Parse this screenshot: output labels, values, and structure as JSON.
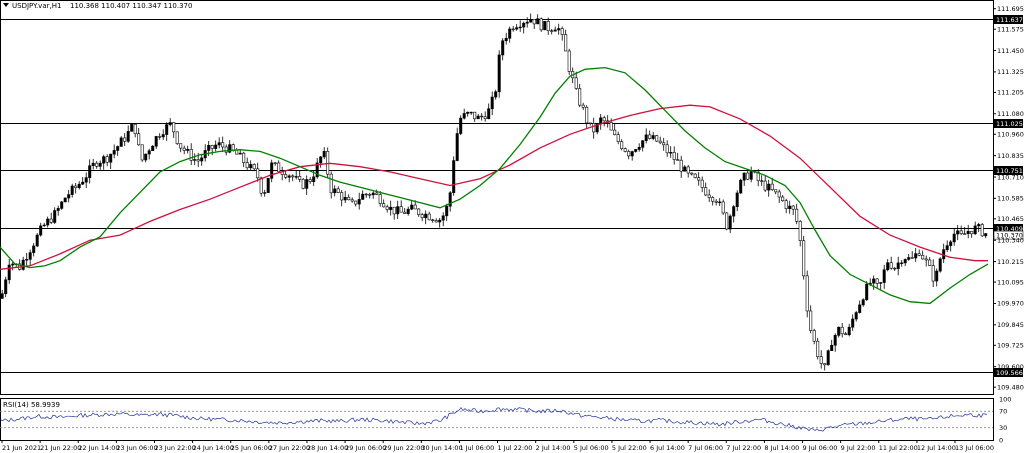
{
  "header": {
    "symbol": "USDJPY.var,H1",
    "ohlc": "110.368 110.407 110.347 110.370"
  },
  "chart_data": {
    "type": "candlestick",
    "symbol": "USDJPY.var",
    "timeframe": "H1",
    "ohlc_last": {
      "open": 110.368,
      "high": 110.407,
      "low": 110.347,
      "close": 110.37
    },
    "grid": false,
    "y_axis": {
      "range": [
        109.44,
        111.74
      ],
      "ticks": [
        "111.695",
        "111.575",
        "111.450",
        "111.325",
        "111.205",
        "111.080",
        "110.960",
        "110.835",
        "110.710",
        "110.585",
        "110.465",
        "110.340",
        "110.215",
        "110.095",
        "109.970",
        "109.845",
        "109.725",
        "109.600",
        "109.480"
      ]
    },
    "x_axis": {
      "ticks": [
        "21 Jun 2021",
        "21 Jun 22:00",
        "22 Jun 14:00",
        "23 Jun 06:00",
        "23 Jun 22:00",
        "24 Jun 14:00",
        "25 Jun 06:00",
        "27 Jun 22:00",
        "28 Jun 14:00",
        "29 Jun 06:00",
        "29 Jun 22:00",
        "30 Jun 14:00",
        "1 Jul 06:00",
        "1 Jul 22:00",
        "2 Jul 14:00",
        "5 Jul 06:00",
        "5 Jul 22:00",
        "6 Jul 14:00",
        "7 Jul 06:00",
        "7 Jul 22:00",
        "8 Jul 14:00",
        "9 Jul 06:00",
        "9 Jul 22:00",
        "11 Jul 22:00",
        "12 Jul 14:00",
        "13 Jul 06:00"
      ]
    },
    "levels": [
      {
        "value": 111.637,
        "label": "111.637"
      },
      {
        "value": 111.025,
        "label": "111.025"
      },
      {
        "value": 110.751,
        "label": "110.751"
      },
      {
        "value": 110.409,
        "label": "110.409"
      },
      {
        "value": 109.566,
        "label": "109.566"
      }
    ],
    "current_price": {
      "value": 110.37,
      "label": "110.370"
    },
    "close_path": [
      [
        0,
        110.0
      ],
      [
        8,
        110.22
      ],
      [
        18,
        110.18
      ],
      [
        30,
        110.3
      ],
      [
        42,
        110.42
      ],
      [
        55,
        110.5
      ],
      [
        65,
        110.6
      ],
      [
        75,
        110.65
      ],
      [
        85,
        110.72
      ],
      [
        95,
        110.8
      ],
      [
        105,
        110.82
      ],
      [
        115,
        110.88
      ],
      [
        125,
        110.95
      ],
      [
        133,
        111.02
      ],
      [
        140,
        110.8
      ],
      [
        150,
        110.9
      ],
      [
        160,
        110.98
      ],
      [
        170,
        111.02
      ],
      [
        178,
        110.9
      ],
      [
        186,
        110.85
      ],
      [
        196,
        110.8
      ],
      [
        206,
        110.86
      ],
      [
        216,
        110.9
      ],
      [
        226,
        110.88
      ],
      [
        236,
        110.84
      ],
      [
        246,
        110.78
      ],
      [
        256,
        110.72
      ],
      [
        262,
        110.6
      ],
      [
        270,
        110.78
      ],
      [
        280,
        110.75
      ],
      [
        290,
        110.72
      ],
      [
        300,
        110.66
      ],
      [
        310,
        110.7
      ],
      [
        318,
        110.8
      ],
      [
        322,
        110.86
      ],
      [
        330,
        110.64
      ],
      [
        340,
        110.6
      ],
      [
        350,
        110.54
      ],
      [
        360,
        110.6
      ],
      [
        370,
        110.62
      ],
      [
        380,
        110.58
      ],
      [
        390,
        110.52
      ],
      [
        400,
        110.5
      ],
      [
        410,
        110.52
      ],
      [
        420,
        110.5
      ],
      [
        430,
        110.48
      ],
      [
        440,
        110.46
      ],
      [
        448,
        110.56
      ],
      [
        452,
        110.8
      ],
      [
        458,
        111.05
      ],
      [
        468,
        111.08
      ],
      [
        478,
        111.05
      ],
      [
        488,
        111.1
      ],
      [
        494,
        111.2
      ],
      [
        500,
        111.5
      ],
      [
        506,
        111.55
      ],
      [
        512,
        111.6
      ],
      [
        520,
        111.62
      ],
      [
        530,
        111.64
      ],
      [
        540,
        111.6
      ],
      [
        548,
        111.58
      ],
      [
        556,
        111.6
      ],
      [
        562,
        111.5
      ],
      [
        568,
        111.35
      ],
      [
        575,
        111.2
      ],
      [
        582,
        111.1
      ],
      [
        588,
        111.0
      ],
      [
        594,
        110.98
      ],
      [
        600,
        111.05
      ],
      [
        606,
        111.02
      ],
      [
        612,
        110.95
      ],
      [
        620,
        110.9
      ],
      [
        628,
        110.85
      ],
      [
        636,
        110.9
      ],
      [
        646,
        110.94
      ],
      [
        656,
        110.92
      ],
      [
        666,
        110.86
      ],
      [
        676,
        110.8
      ],
      [
        686,
        110.72
      ],
      [
        696,
        110.68
      ],
      [
        706,
        110.62
      ],
      [
        716,
        110.58
      ],
      [
        726,
        110.42
      ],
      [
        734,
        110.6
      ],
      [
        742,
        110.7
      ],
      [
        750,
        110.74
      ],
      [
        758,
        110.68
      ],
      [
        766,
        110.65
      ],
      [
        776,
        110.6
      ],
      [
        786,
        110.54
      ],
      [
        794,
        110.5
      ],
      [
        800,
        110.3
      ],
      [
        804,
        110.05
      ],
      [
        808,
        109.85
      ],
      [
        814,
        109.72
      ],
      [
        820,
        109.62
      ],
      [
        824,
        109.58
      ],
      [
        830,
        109.75
      ],
      [
        838,
        109.82
      ],
      [
        846,
        109.78
      ],
      [
        854,
        109.92
      ],
      [
        862,
        110.02
      ],
      [
        870,
        110.1
      ],
      [
        878,
        110.05
      ],
      [
        886,
        110.22
      ],
      [
        894,
        110.18
      ],
      [
        902,
        110.25
      ],
      [
        910,
        110.22
      ],
      [
        918,
        110.28
      ],
      [
        926,
        110.2
      ],
      [
        934,
        110.1
      ],
      [
        940,
        110.26
      ],
      [
        946,
        110.33
      ],
      [
        952,
        110.38
      ],
      [
        960,
        110.36
      ],
      [
        968,
        110.4
      ],
      [
        976,
        110.41
      ],
      [
        984,
        110.38
      ],
      [
        988,
        110.37
      ]
    ],
    "series": [
      {
        "name": "",
        "color": "#d0103a",
        "values": [
          [
            0,
            110.17
          ],
          [
            30,
            110.19
          ],
          [
            60,
            110.26
          ],
          [
            90,
            110.34
          ],
          [
            120,
            110.37
          ],
          [
            150,
            110.45
          ],
          [
            180,
            110.52
          ],
          [
            210,
            110.58
          ],
          [
            240,
            110.65
          ],
          [
            270,
            110.72
          ],
          [
            300,
            110.77
          ],
          [
            330,
            110.79
          ],
          [
            360,
            110.77
          ],
          [
            390,
            110.74
          ],
          [
            420,
            110.7
          ],
          [
            450,
            110.66
          ],
          [
            480,
            110.7
          ],
          [
            510,
            110.78
          ],
          [
            540,
            110.88
          ],
          [
            570,
            110.96
          ],
          [
            600,
            111.02
          ],
          [
            630,
            111.07
          ],
          [
            660,
            111.11
          ],
          [
            690,
            111.13
          ],
          [
            710,
            111.12
          ],
          [
            740,
            111.05
          ],
          [
            770,
            110.95
          ],
          [
            800,
            110.82
          ],
          [
            830,
            110.65
          ],
          [
            860,
            110.48
          ],
          [
            890,
            110.37
          ],
          [
            920,
            110.3
          ],
          [
            950,
            110.24
          ],
          [
            975,
            110.22
          ],
          [
            988,
            110.22
          ]
        ]
      },
      {
        "name": "",
        "color": "#008000",
        "values": [
          [
            0,
            110.3
          ],
          [
            15,
            110.2
          ],
          [
            30,
            110.18
          ],
          [
            45,
            110.19
          ],
          [
            60,
            110.22
          ],
          [
            80,
            110.3
          ],
          [
            100,
            110.36
          ],
          [
            120,
            110.5
          ],
          [
            140,
            110.62
          ],
          [
            160,
            110.74
          ],
          [
            180,
            110.8
          ],
          [
            200,
            110.84
          ],
          [
            220,
            110.86
          ],
          [
            240,
            110.87
          ],
          [
            260,
            110.86
          ],
          [
            280,
            110.82
          ],
          [
            300,
            110.77
          ],
          [
            320,
            110.72
          ],
          [
            340,
            110.68
          ],
          [
            360,
            110.65
          ],
          [
            380,
            110.62
          ],
          [
            400,
            110.59
          ],
          [
            420,
            110.56
          ],
          [
            440,
            110.53
          ],
          [
            460,
            110.58
          ],
          [
            480,
            110.66
          ],
          [
            500,
            110.76
          ],
          [
            520,
            110.9
          ],
          [
            540,
            111.06
          ],
          [
            555,
            111.2
          ],
          [
            570,
            111.3
          ],
          [
            585,
            111.34
          ],
          [
            605,
            111.35
          ],
          [
            625,
            111.32
          ],
          [
            645,
            111.22
          ],
          [
            665,
            111.1
          ],
          [
            685,
            110.98
          ],
          [
            705,
            110.88
          ],
          [
            725,
            110.8
          ],
          [
            745,
            110.76
          ],
          [
            765,
            110.72
          ],
          [
            785,
            110.66
          ],
          [
            800,
            110.56
          ],
          [
            815,
            110.4
          ],
          [
            830,
            110.25
          ],
          [
            850,
            110.14
          ],
          [
            870,
            110.08
          ],
          [
            890,
            110.02
          ],
          [
            910,
            109.98
          ],
          [
            930,
            109.97
          ],
          [
            950,
            110.06
          ],
          [
            970,
            110.14
          ],
          [
            988,
            110.2
          ]
        ]
      }
    ],
    "rsi": {
      "label": "RSI(14) 58.9939",
      "period": 14,
      "value": 58.9939,
      "range": [
        0,
        100
      ],
      "ticks": [
        "100",
        "70",
        "30",
        "0"
      ],
      "levels": [
        70,
        30
      ],
      "color": "#1f2f9e",
      "values": [
        [
          0,
          46
        ],
        [
          20,
          52
        ],
        [
          40,
          58
        ],
        [
          60,
          55
        ],
        [
          80,
          60
        ],
        [
          100,
          62
        ],
        [
          120,
          64
        ],
        [
          140,
          60
        ],
        [
          160,
          63
        ],
        [
          180,
          58
        ],
        [
          200,
          52
        ],
        [
          220,
          50
        ],
        [
          240,
          48
        ],
        [
          260,
          44
        ],
        [
          280,
          42
        ],
        [
          300,
          45
        ],
        [
          320,
          47
        ],
        [
          340,
          46
        ],
        [
          360,
          50
        ],
        [
          380,
          48
        ],
        [
          400,
          44
        ],
        [
          420,
          40
        ],
        [
          440,
          47
        ],
        [
          460,
          75
        ],
        [
          480,
          70
        ],
        [
          500,
          76
        ],
        [
          520,
          74
        ],
        [
          540,
          70
        ],
        [
          560,
          72
        ],
        [
          580,
          60
        ],
        [
          600,
          55
        ],
        [
          620,
          50
        ],
        [
          640,
          46
        ],
        [
          660,
          48
        ],
        [
          680,
          44
        ],
        [
          700,
          42
        ],
        [
          720,
          38
        ],
        [
          740,
          45
        ],
        [
          760,
          50
        ],
        [
          780,
          40
        ],
        [
          800,
          30
        ],
        [
          815,
          22
        ],
        [
          830,
          30
        ],
        [
          850,
          38
        ],
        [
          870,
          42
        ],
        [
          890,
          48
        ],
        [
          910,
          52
        ],
        [
          930,
          50
        ],
        [
          950,
          58
        ],
        [
          970,
          62
        ],
        [
          988,
          59
        ]
      ]
    }
  }
}
